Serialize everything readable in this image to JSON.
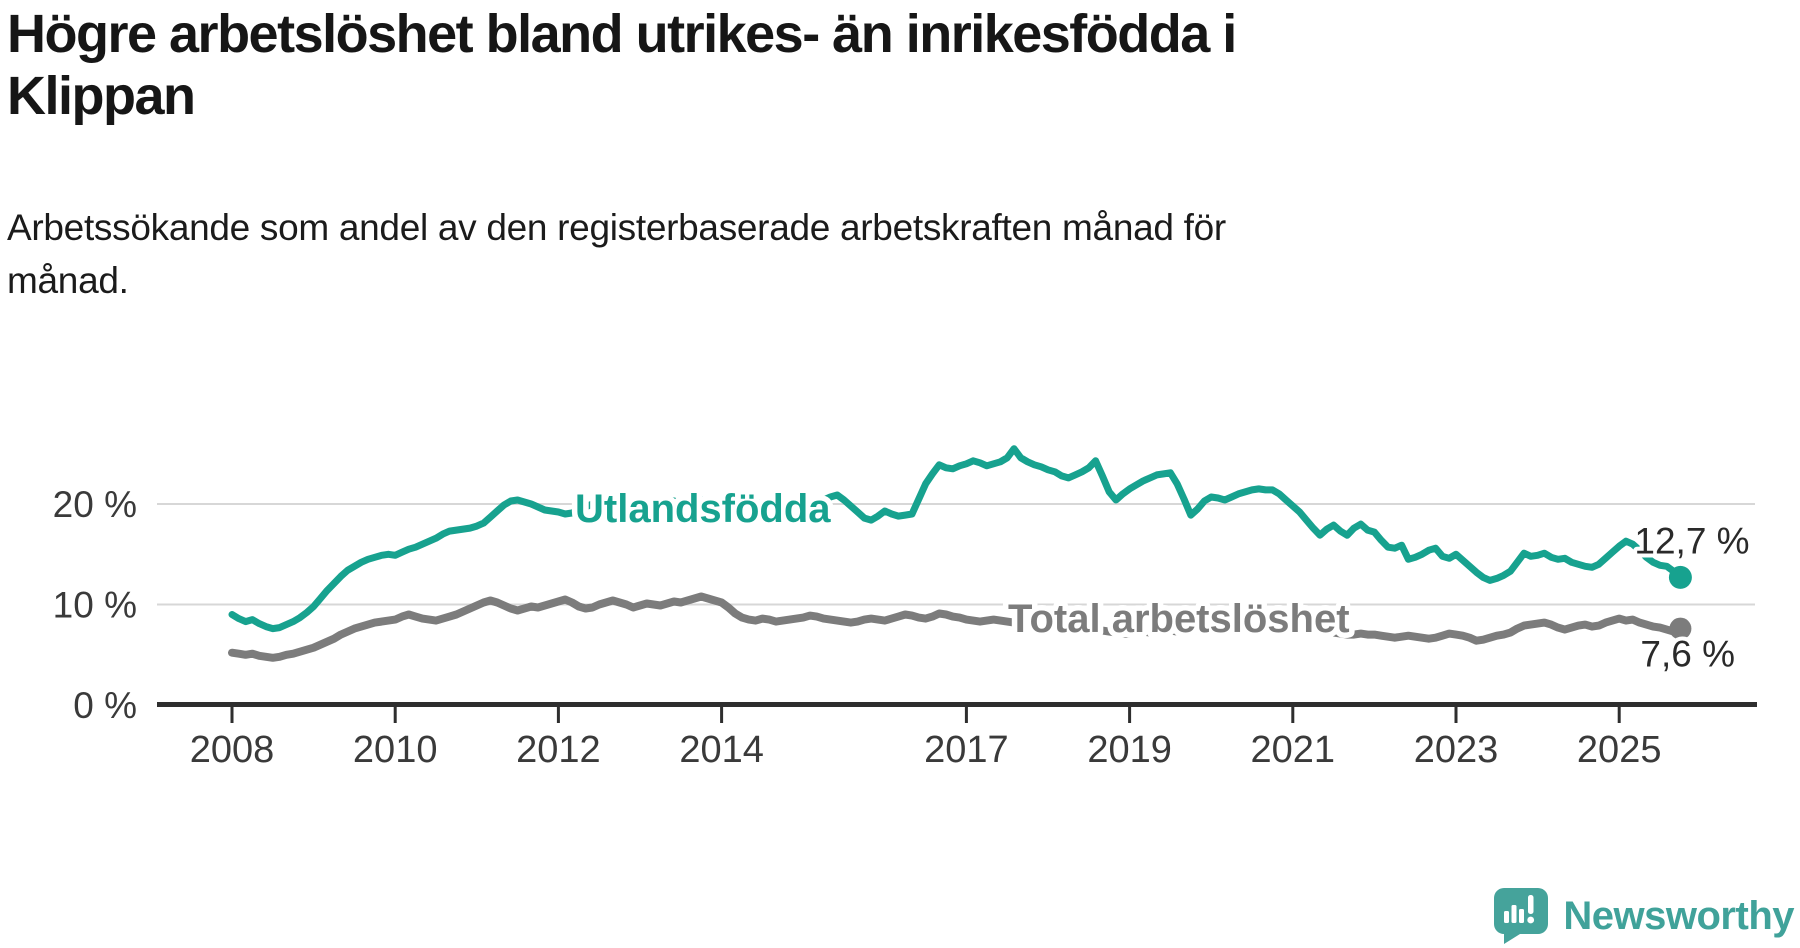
{
  "title": "Högre arbetslöshet bland utrikes- än inrikesfödda i\nKlippan",
  "subtitle": "Arbetssökande som andel av den registerbaserade arbetskraften månad för\nmånad.",
  "branding": {
    "name": "Newsworthy",
    "logo_icon": "speech-bubble-bar-chart-exclamation",
    "color": "#40a29a"
  },
  "chart_data": {
    "type": "line",
    "frequency": "monthly",
    "x_start": "2008-01",
    "x_end": "2025-10",
    "x_tick_years": [
      2008,
      2010,
      2012,
      2014,
      2017,
      2019,
      2021,
      2023,
      2025
    ],
    "y_ticks": [
      {
        "value": 0,
        "label": "0 %"
      },
      {
        "value": 10,
        "label": "10 %"
      },
      {
        "value": 20,
        "label": "20 %"
      }
    ],
    "ylim": [
      0,
      27
    ],
    "grid": "horizontal",
    "legend_position": "inline-on-line",
    "colors": {
      "axis": "#2e2e2e",
      "gridline": "#d7d7d7",
      "tick_text": "#3a3a3a"
    },
    "series": [
      {
        "name": "Utlandsfödda",
        "color": "#17a28f",
        "end_label": "12,7 %",
        "end_value": 12.7,
        "values": [
          9.0,
          8.6,
          8.3,
          8.5,
          8.1,
          7.8,
          7.6,
          7.7,
          8.0,
          8.3,
          8.7,
          9.2,
          9.8,
          10.6,
          11.4,
          12.1,
          12.8,
          13.4,
          13.8,
          14.2,
          14.5,
          14.7,
          14.9,
          15.0,
          14.9,
          15.2,
          15.5,
          15.7,
          16.0,
          16.3,
          16.6,
          17.0,
          17.3,
          17.4,
          17.5,
          17.6,
          17.8,
          18.1,
          18.7,
          19.3,
          19.9,
          20.3,
          20.4,
          20.2,
          20.0,
          19.7,
          19.4,
          19.3,
          19.2,
          19.0,
          19.1,
          19.4,
          19.7,
          20.0,
          20.2,
          20.1,
          19.9,
          19.8,
          19.9,
          20.0,
          19.9,
          19.7,
          19.9,
          20.2,
          20.4,
          20.3,
          20.1,
          20.0,
          20.2,
          20.4,
          20.3,
          20.1,
          20.0,
          19.8,
          19.6,
          19.8,
          20.0,
          20.2,
          20.0,
          19.8,
          19.9,
          20.1,
          20.0,
          19.9,
          19.8,
          19.9,
          20.1,
          20.4,
          20.7,
          20.9,
          20.4,
          19.8,
          19.2,
          18.6,
          18.4,
          18.8,
          19.3,
          19.0,
          18.8,
          18.9,
          19.0,
          20.5,
          22.0,
          23.0,
          23.9,
          23.6,
          23.5,
          23.8,
          24.0,
          24.3,
          24.1,
          23.8,
          24.0,
          24.2,
          24.6,
          25.5,
          24.6,
          24.2,
          23.9,
          23.7,
          23.4,
          23.2,
          22.8,
          22.6,
          22.9,
          23.2,
          23.6,
          24.3,
          22.8,
          21.2,
          20.4,
          21.0,
          21.5,
          21.9,
          22.3,
          22.6,
          22.9,
          23.0,
          23.1,
          22.0,
          20.5,
          18.9,
          19.5,
          20.3,
          20.7,
          20.6,
          20.4,
          20.7,
          21.0,
          21.2,
          21.4,
          21.5,
          21.4,
          21.4,
          21.0,
          20.4,
          19.8,
          19.2,
          18.4,
          17.6,
          16.9,
          17.5,
          17.9,
          17.3,
          16.9,
          17.6,
          18.0,
          17.4,
          17.2,
          16.4,
          15.7,
          15.6,
          15.9,
          14.5,
          14.7,
          15.0,
          15.4,
          15.6,
          14.8,
          14.6,
          15.0,
          14.4,
          13.8,
          13.2,
          12.7,
          12.4,
          12.6,
          12.9,
          13.3,
          14.2,
          15.1,
          14.8,
          14.9,
          15.1,
          14.7,
          14.5,
          14.6,
          14.2,
          14.0,
          13.8,
          13.7,
          14.0,
          14.6,
          15.2,
          15.8,
          16.3,
          16.0,
          15.4,
          14.7,
          14.2,
          13.9,
          13.8,
          13.3,
          12.7
        ]
      },
      {
        "name": "Total arbetslöshet",
        "color": "#7c7c7c",
        "end_label": "7,6 %",
        "end_value": 7.6,
        "values": [
          5.2,
          5.1,
          5.0,
          5.1,
          4.9,
          4.8,
          4.7,
          4.8,
          5.0,
          5.1,
          5.3,
          5.5,
          5.7,
          6.0,
          6.3,
          6.6,
          7.0,
          7.3,
          7.6,
          7.8,
          8.0,
          8.2,
          8.3,
          8.4,
          8.5,
          8.8,
          9.0,
          8.8,
          8.6,
          8.5,
          8.4,
          8.6,
          8.8,
          9.0,
          9.3,
          9.6,
          9.9,
          10.2,
          10.4,
          10.2,
          9.9,
          9.6,
          9.4,
          9.6,
          9.8,
          9.7,
          9.9,
          10.1,
          10.3,
          10.5,
          10.2,
          9.8,
          9.6,
          9.7,
          10.0,
          10.2,
          10.4,
          10.2,
          10.0,
          9.7,
          9.9,
          10.1,
          10.0,
          9.9,
          10.1,
          10.3,
          10.2,
          10.4,
          10.6,
          10.8,
          10.6,
          10.4,
          10.2,
          9.7,
          9.1,
          8.7,
          8.5,
          8.4,
          8.6,
          8.5,
          8.3,
          8.4,
          8.5,
          8.6,
          8.7,
          8.9,
          8.8,
          8.6,
          8.5,
          8.4,
          8.3,
          8.2,
          8.3,
          8.5,
          8.6,
          8.5,
          8.4,
          8.6,
          8.8,
          9.0,
          8.9,
          8.7,
          8.6,
          8.8,
          9.1,
          9.0,
          8.8,
          8.7,
          8.5,
          8.4,
          8.3,
          8.4,
          8.5,
          8.4,
          8.3,
          8.2,
          8.1,
          8.0,
          7.9,
          7.8,
          7.7,
          7.6,
          7.5,
          7.4,
          7.3,
          7.3,
          7.4,
          7.5,
          7.4,
          7.3,
          7.2,
          7.1,
          7.1,
          7.2,
          7.3,
          7.2,
          7.2,
          7.3,
          7.4,
          7.3,
          7.2,
          7.3,
          7.5,
          7.8,
          8.0,
          8.2,
          8.5,
          8.9,
          9.2,
          9.4,
          9.3,
          9.1,
          8.9,
          8.7,
          8.5,
          8.3,
          8.1,
          7.9,
          7.7,
          7.5,
          7.4,
          7.3,
          7.2,
          7.1,
          7.0,
          7.0,
          7.1,
          7.0,
          7.0,
          6.9,
          6.8,
          6.7,
          6.8,
          6.9,
          6.8,
          6.7,
          6.6,
          6.7,
          6.9,
          7.1,
          7.0,
          6.9,
          6.7,
          6.4,
          6.5,
          6.7,
          6.9,
          7.0,
          7.2,
          7.6,
          7.9,
          8.0,
          8.1,
          8.2,
          8.0,
          7.7,
          7.5,
          7.7,
          7.9,
          8.0,
          7.8,
          7.9,
          8.2,
          8.4,
          8.6,
          8.4,
          8.5,
          8.2,
          8.0,
          7.8,
          7.7,
          7.5,
          7.3,
          7.6
        ]
      }
    ]
  }
}
